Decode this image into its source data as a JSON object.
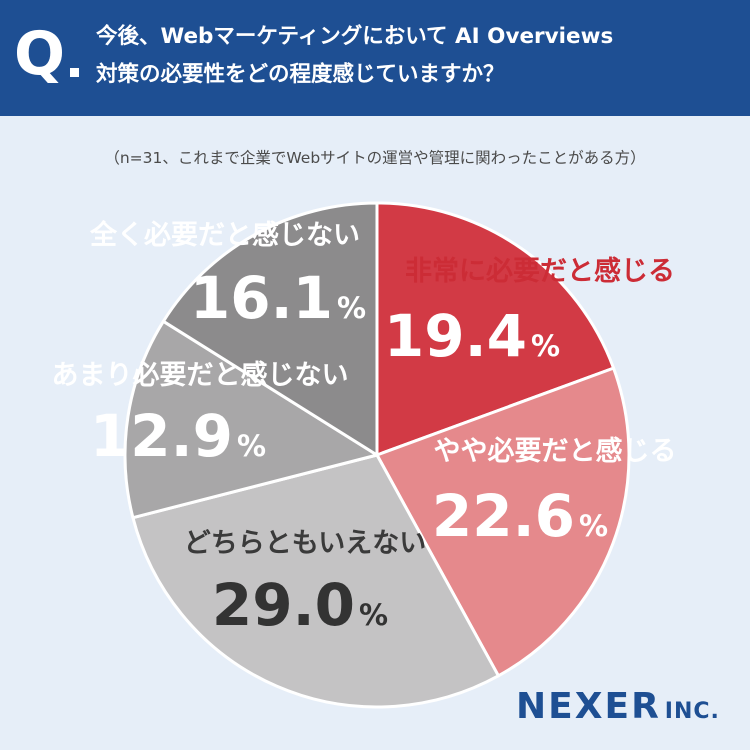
{
  "header": {
    "q_mark": "Q",
    "question_line1": "今後、Webマーケティングにおいて AI Overviews",
    "question_line2": "対策の必要性をどの程度感じていますか？"
  },
  "sample_note": "（n=31、これまで企業でWebサイトの運営や管理に関わったことがある方）",
  "brand": {
    "main": "NEXER",
    "sub": "INC."
  },
  "colors": {
    "header_bg": "#1e4f93",
    "page_bg": "#e6eef8",
    "slice_1": "#d23a45",
    "slice_2": "#e5898c",
    "slice_3": "#c4c3c4",
    "slice_4": "#a8a7a8",
    "slice_5": "#8c8b8c"
  },
  "chart_data": {
    "type": "pie",
    "unit": "%",
    "slices": [
      {
        "label": "非常に必要だと感じる",
        "value": 19.4,
        "value_text": "19.4",
        "color": "#d23a45",
        "label_color": "#cc2c36",
        "value_color": "#ffffff"
      },
      {
        "label": "やや必要だと感じる",
        "value": 22.6,
        "value_text": "22.6",
        "color": "#e5898c",
        "label_color": "#ffffff",
        "value_color": "#ffffff"
      },
      {
        "label": "どちらともいえない",
        "value": 29.0,
        "value_text": "29.0",
        "color": "#c4c3c4",
        "label_color": "#3a3a3a",
        "value_color": "#333333"
      },
      {
        "label": "あまり必要だと感じない",
        "value": 12.9,
        "value_text": "12.9",
        "color": "#a8a7a8",
        "label_color": "#ffffff",
        "value_color": "#ffffff"
      },
      {
        "label": "全く必要だと感じない",
        "value": 16.1,
        "value_text": "16.1",
        "color": "#8c8b8c",
        "label_color": "#ffffff",
        "value_color": "#ffffff"
      }
    ]
  }
}
